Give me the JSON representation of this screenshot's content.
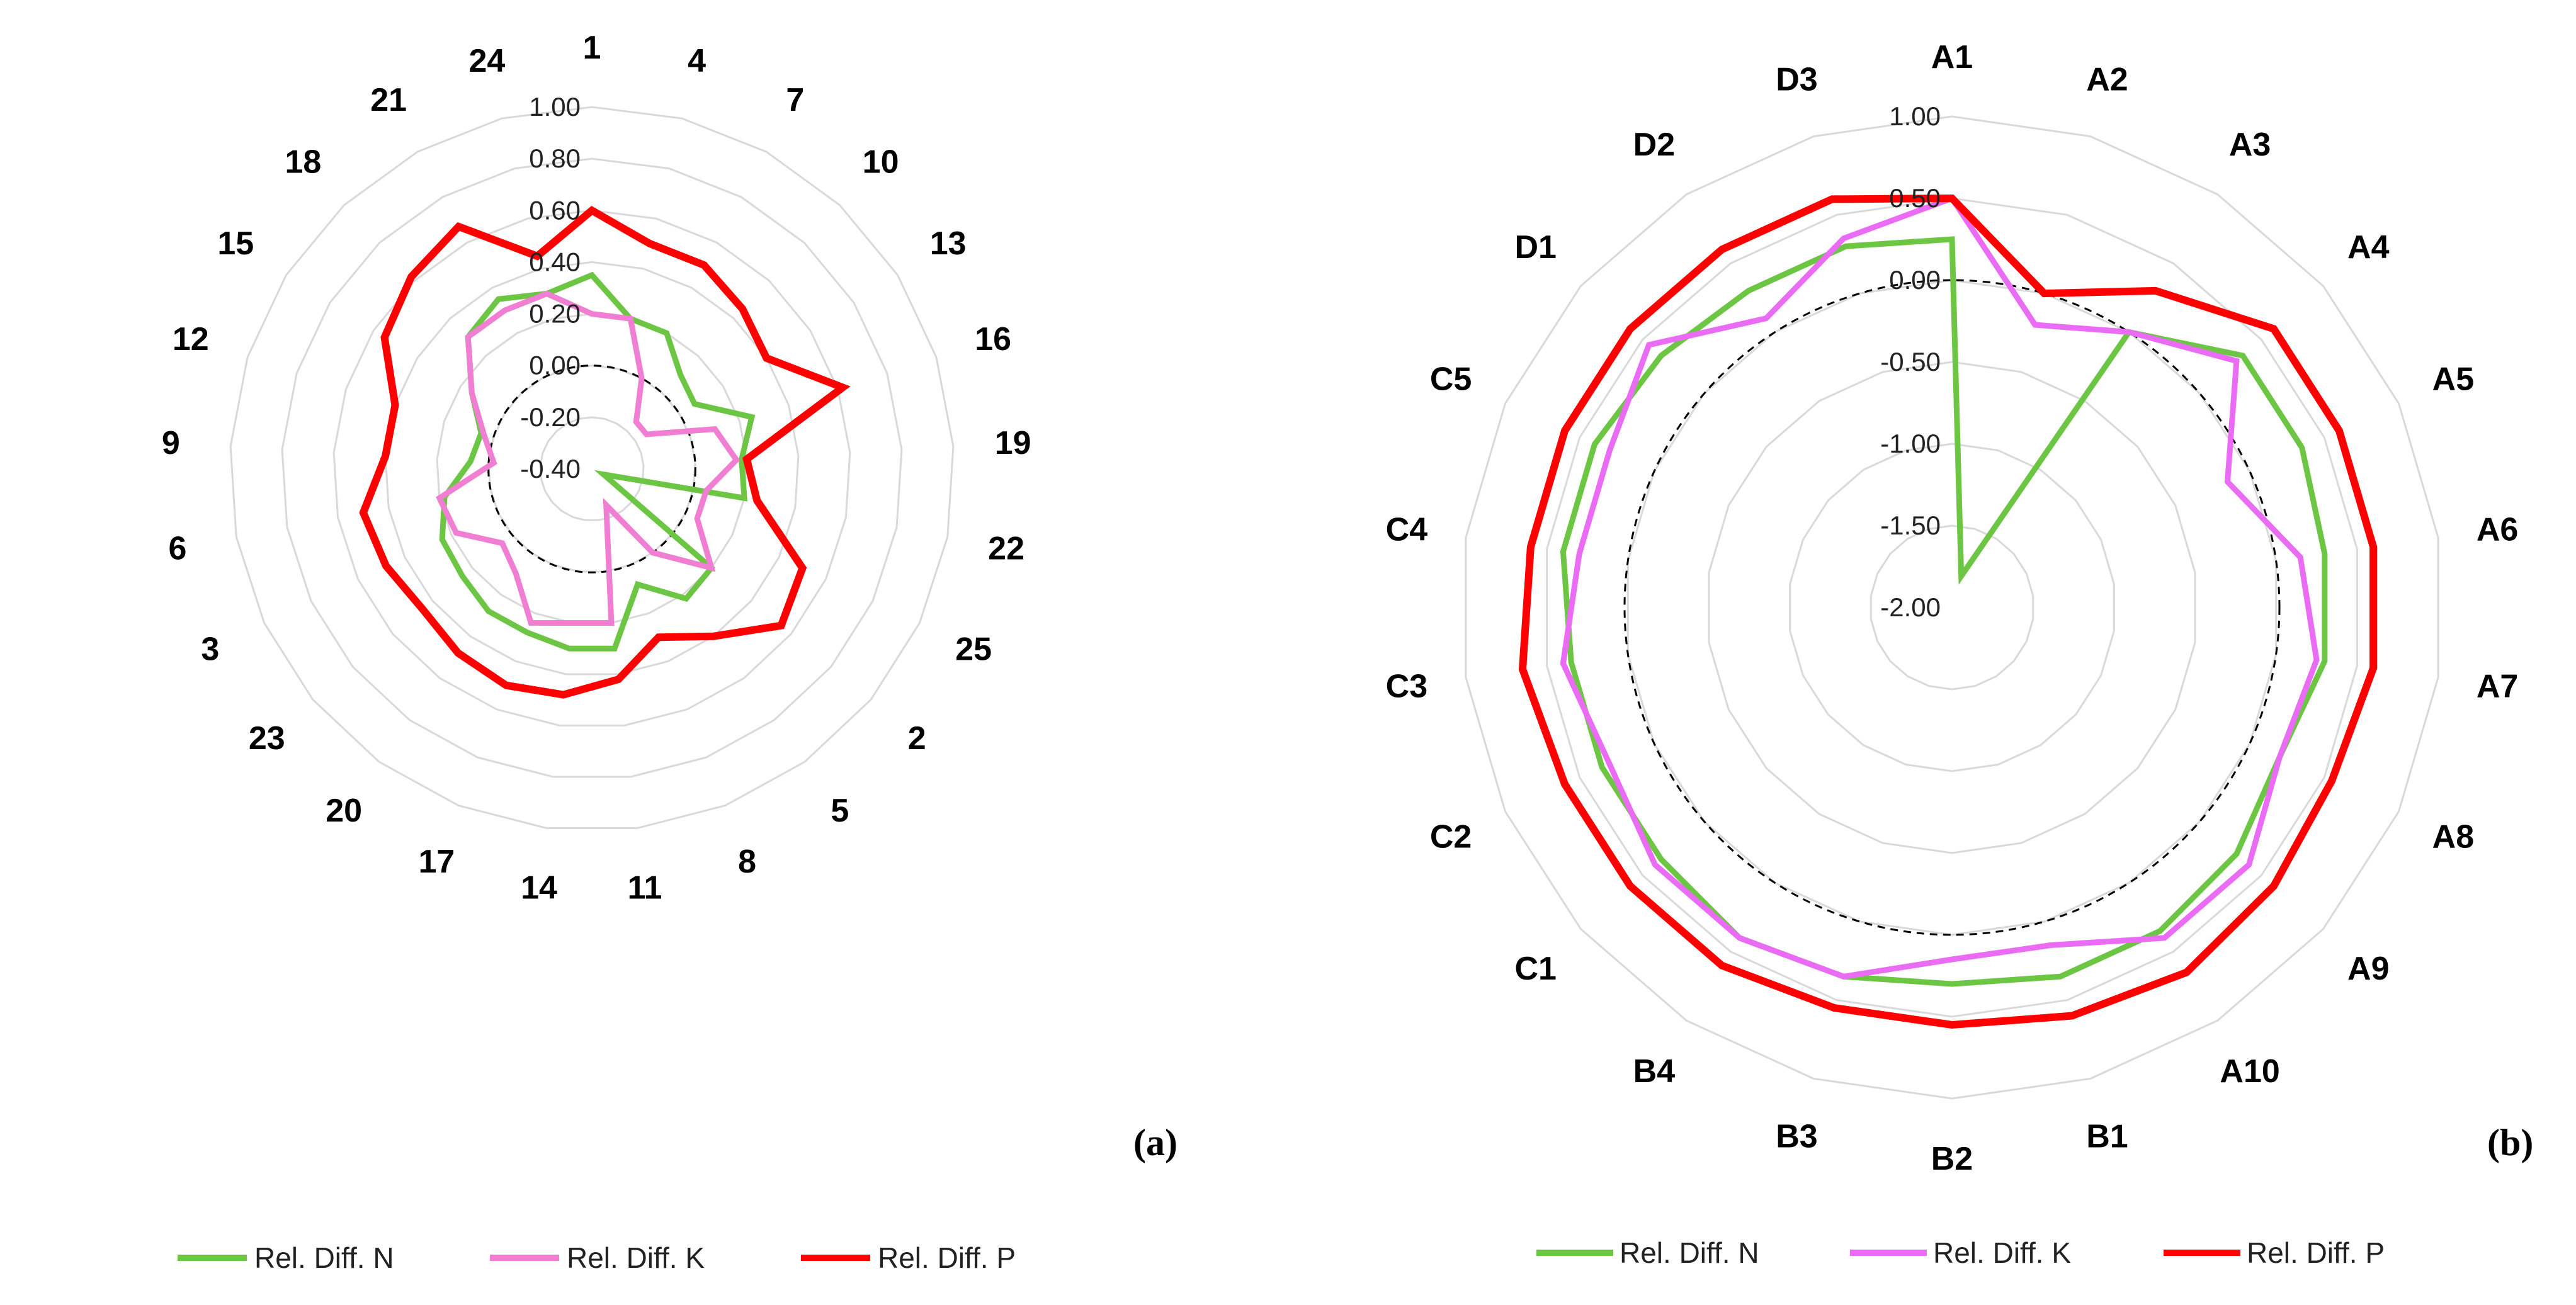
{
  "chart_data": [
    {
      "type": "radar",
      "panel_label": "(a)",
      "categories": [
        "1",
        "4",
        "7",
        "10",
        "13",
        "16",
        "19",
        "22",
        "25",
        "2",
        "5",
        "8",
        "11",
        "14",
        "17",
        "20",
        "23",
        "3",
        "6",
        "9",
        "12",
        "15",
        "18",
        "21",
        "24"
      ],
      "range": [
        -0.4,
        1.0
      ],
      "ticks": [
        -0.4,
        -0.2,
        0.0,
        0.2,
        0.4,
        0.6,
        0.8,
        1.0
      ],
      "tick_labels": [
        "-0.40",
        "-0.20",
        "0.00",
        "0.20",
        "0.40",
        "0.60",
        "0.80",
        "1.00"
      ],
      "zero_ring": 0.0,
      "series": [
        {
          "name": "Rel. Diff. N",
          "color": "#6cc644",
          "values": [
            0.35,
            0.2,
            0.2,
            0.1,
            0.07,
            0.25,
            0.18,
            0.2,
            -0.35,
            0.2,
            0.22,
            0.08,
            0.3,
            0.3,
            0.28,
            0.28,
            0.25,
            0.24,
            0.18,
            0.07,
            0.05,
            0.15,
            0.3,
            0.35,
            0.3
          ]
        },
        {
          "name": "Rel. Diff. K",
          "color": "#f07ed2",
          "values": [
            0.2,
            0.2,
            0.0,
            -0.15,
            -0.15,
            0.1,
            0.16,
            0.05,
            0.05,
            0.2,
            0.0,
            -0.25,
            0.2,
            0.2,
            0.24,
            0.1,
            0.05,
            0.18,
            0.2,
            -0.02,
            0.04,
            0.15,
            0.3,
            0.3,
            0.3
          ]
        },
        {
          "name": "Rel. Diff. P",
          "color": "#ff0000",
          "values": [
            0.6,
            0.5,
            0.5,
            0.45,
            0.4,
            0.62,
            0.2,
            0.25,
            0.5,
            0.55,
            0.4,
            0.3,
            0.42,
            0.48,
            0.5,
            0.48,
            0.45,
            0.48,
            0.5,
            0.4,
            0.4,
            0.55,
            0.62,
            0.67,
            0.45
          ]
        }
      ]
    },
    {
      "type": "radar",
      "panel_label": "(b)",
      "categories": [
        "A1",
        "A2",
        "A3",
        "A4",
        "A5",
        "A6",
        "A7",
        "A8",
        "A9",
        "A10",
        "B1",
        "B2",
        "B3",
        "B4",
        "C1",
        "C2",
        "C3",
        "C4",
        "C5",
        "D1",
        "D2",
        "D3"
      ],
      "range": [
        -2.0,
        1.0
      ],
      "ticks": [
        -2.0,
        -1.5,
        -1.0,
        -0.5,
        0.0,
        0.5,
        1.0
      ],
      "tick_labels": [
        "-2.00",
        "-1.50",
        "-1.00",
        "-0.50",
        "0.00",
        "0.50",
        "1.00"
      ],
      "zero_ring": 0.0,
      "series": [
        {
          "name": "Rel. Diff. N",
          "color": "#6cc644",
          "values": [
            0.25,
            -1.8,
            0.0,
            0.35,
            0.35,
            0.3,
            0.3,
            0.2,
            0.3,
            0.35,
            0.35,
            0.3,
            0.35,
            0.4,
            0.35,
            0.35,
            0.35,
            0.4,
            0.4,
            0.35,
            0.3,
            0.3
          ]
        },
        {
          "name": "Rel. Diff. K",
          "color": "#ea6cf5",
          "values": [
            0.5,
            -0.2,
            0.0,
            0.3,
            -0.15,
            0.15,
            0.25,
            0.2,
            0.4,
            0.4,
            0.15,
            0.15,
            0.35,
            0.4,
            0.4,
            0.3,
            0.4,
            0.3,
            0.3,
            0.45,
            0.1,
            0.35
          ]
        },
        {
          "name": "Rel. Diff. P",
          "color": "#ff0000",
          "values": [
            0.5,
            0.0,
            0.3,
            0.6,
            0.6,
            0.6,
            0.6,
            0.55,
            0.6,
            0.65,
            0.6,
            0.55,
            0.55,
            0.6,
            0.6,
            0.6,
            0.65,
            0.6,
            0.6,
            0.6,
            0.6,
            0.6
          ]
        }
      ]
    }
  ],
  "legend": {
    "items": [
      {
        "label": "Rel. Diff. N"
      },
      {
        "label": "Rel. Diff. K"
      },
      {
        "label": "Rel. Diff. P"
      }
    ]
  }
}
